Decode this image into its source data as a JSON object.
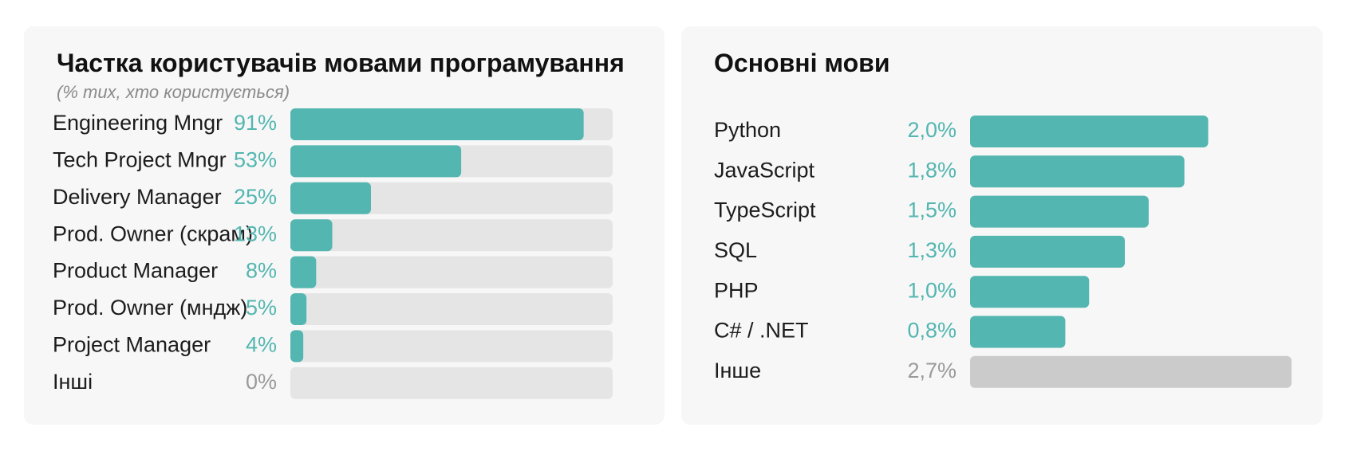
{
  "colors": {
    "bar": "#53b6b0",
    "track": "#e5e5e5",
    "other_bar": "#cbcbcb",
    "value_text": "#53b6b0",
    "muted_text": "#9a9a9a"
  },
  "chart_data": [
    {
      "type": "bar",
      "orientation": "horizontal",
      "title": "Частка користувачів мовами програмування",
      "subtitle": "(% тих, хто користується)",
      "categories": [
        "Engineering Mngr",
        "Tech Project Mngr",
        "Delivery Manager",
        "Prod. Owner (скрам)",
        "Product Manager",
        "Prod. Owner (мндж)",
        "Project Manager",
        "Інші"
      ],
      "values": [
        91,
        53,
        25,
        13,
        8,
        5,
        4,
        0
      ],
      "value_labels": [
        "91%",
        "53%",
        "25%",
        "13%",
        "8%",
        "5%",
        "4%",
        "0%"
      ],
      "xlim": [
        0,
        100
      ],
      "background_track": true
    },
    {
      "type": "bar",
      "orientation": "horizontal",
      "title": "Основні мови",
      "categories": [
        "Python",
        "JavaScript",
        "TypeScript",
        "SQL",
        "PHP",
        "C# / .NET",
        "Інше"
      ],
      "values": [
        2.0,
        1.8,
        1.5,
        1.3,
        1.0,
        0.8,
        2.7
      ],
      "value_labels": [
        "2,0%",
        "1,8%",
        "1,5%",
        "1,3%",
        "1,0%",
        "0,8%",
        "2,7%"
      ],
      "highlight": [
        true,
        true,
        true,
        true,
        true,
        true,
        false
      ],
      "xlim": [
        0,
        2.7
      ],
      "background_track": false
    }
  ]
}
